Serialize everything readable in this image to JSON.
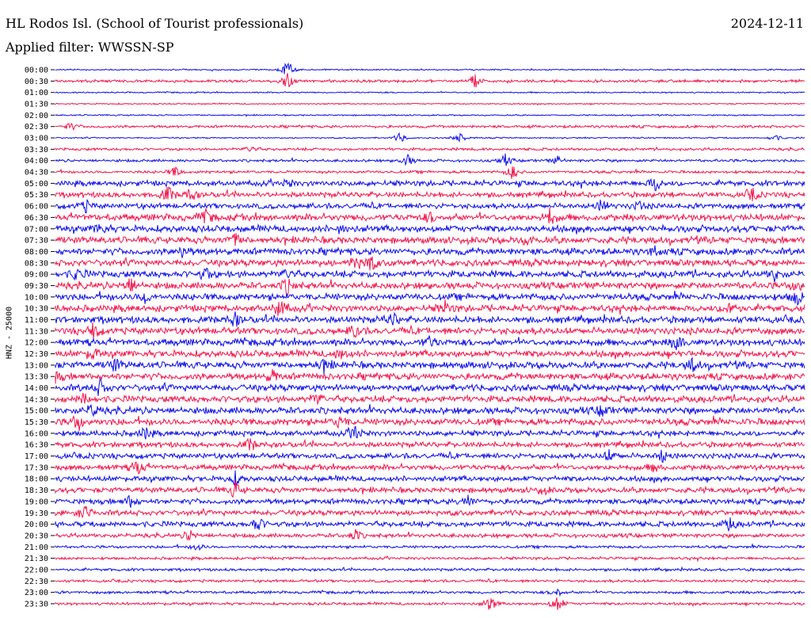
{
  "header": {
    "station": "HL Rodos Isl. (School of Tourist professionals)",
    "date": "2024-12-11",
    "filter": "Applied filter: WWSSN-SP"
  },
  "yaxis_label": "HNZ - 25000",
  "colors": {
    "blue": "#1010e8",
    "red": "#f0184e"
  },
  "chart_data": {
    "type": "line",
    "title": "HL Rodos Isl. (School of Tourist professionals)",
    "subtitle": "Applied filter: WWSSN-SP",
    "ylabel": "HNZ - 25000",
    "tick_labels": [
      "00:00",
      "00:30",
      "01:00",
      "01:30",
      "02:00",
      "02:30",
      "03:00",
      "03:30",
      "04:00",
      "04:30",
      "05:00",
      "05:30",
      "06:00",
      "06:30",
      "07:00",
      "07:30",
      "08:00",
      "08:30",
      "09:00",
      "09:30",
      "10:00",
      "10:30",
      "11:00",
      "11:30",
      "12:00",
      "12:30",
      "13:00",
      "13:30",
      "14:00",
      "14:30",
      "15:00",
      "15:30",
      "16:00",
      "16:30",
      "17:00",
      "17:30",
      "18:00",
      "18:30",
      "19:00",
      "19:30",
      "20:00",
      "20:30",
      "21:00",
      "21:30",
      "22:00",
      "22:30",
      "23:00",
      "23:30"
    ],
    "series_colors": [
      "blue",
      "red"
    ],
    "noise_level": [
      1,
      2,
      1,
      1,
      1,
      2,
      1,
      2,
      2,
      2,
      4,
      4,
      4,
      5,
      5,
      5,
      5,
      5,
      5,
      5,
      5,
      5,
      5,
      5,
      5,
      5,
      5,
      5,
      5,
      5,
      5,
      5,
      4,
      4,
      4,
      4,
      4,
      4,
      4,
      4,
      4,
      3,
      2,
      2,
      2,
      2,
      2,
      2
    ],
    "events": [
      [
        [
          0.31,
          5
        ]
      ],
      [
        [
          0.31,
          4
        ],
        [
          0.56,
          4
        ]
      ],
      [],
      [],
      [],
      [
        [
          0.02,
          2
        ]
      ],
      [
        [
          0.46,
          3
        ],
        [
          0.54,
          3
        ],
        [
          0.96,
          2
        ]
      ],
      [
        [
          0.26,
          2
        ]
      ],
      [
        [
          0.47,
          3
        ],
        [
          0.67,
          2
        ],
        [
          0.6,
          3
        ]
      ],
      [
        [
          0.16,
          3
        ],
        [
          0.61,
          4
        ]
      ],
      [
        [
          0.8,
          4
        ],
        [
          0.31,
          2
        ]
      ],
      [
        [
          0.15,
          4
        ],
        [
          0.18,
          3
        ],
        [
          0.93,
          3
        ]
      ],
      [
        [
          0.04,
          3
        ],
        [
          0.73,
          3
        ],
        [
          0.78,
          2
        ]
      ],
      [
        [
          0.2,
          3
        ],
        [
          0.66,
          4
        ],
        [
          0.5,
          2
        ]
      ],
      [
        [
          0.06,
          3
        ],
        [
          0.38,
          2
        ]
      ],
      [
        [
          0.24,
          3
        ],
        [
          0.63,
          2
        ]
      ],
      [
        [
          0.17,
          3
        ],
        [
          0.8,
          2
        ]
      ],
      [
        [
          0.42,
          4
        ],
        [
          0.4,
          3
        ]
      ],
      [
        [
          0.03,
          3
        ],
        [
          0.2,
          3
        ],
        [
          0.31,
          3
        ],
        [
          0.96,
          3
        ]
      ],
      [
        [
          0.1,
          4
        ],
        [
          0.31,
          4
        ],
        [
          0.99,
          3
        ]
      ],
      [
        [
          0.12,
          3
        ],
        [
          0.99,
          4
        ]
      ],
      [
        [
          0.3,
          5
        ],
        [
          0.52,
          3
        ],
        [
          0.9,
          4
        ]
      ],
      [
        [
          0.24,
          3
        ],
        [
          0.45,
          3
        ]
      ],
      [
        [
          0.05,
          4
        ],
        [
          0.4,
          3
        ]
      ],
      [
        [
          0.5,
          3
        ],
        [
          0.83,
          4
        ]
      ],
      [
        [
          0.05,
          3
        ],
        [
          0.38,
          3
        ]
      ],
      [
        [
          0.08,
          3
        ],
        [
          0.36,
          3
        ],
        [
          0.85,
          3
        ]
      ],
      [
        [
          0.0,
          3
        ],
        [
          0.29,
          3
        ]
      ],
      [
        [
          0.06,
          4
        ]
      ],
      [
        [
          0.04,
          3
        ],
        [
          0.35,
          3
        ]
      ],
      [
        [
          0.05,
          3
        ],
        [
          0.73,
          3
        ]
      ],
      [
        [
          0.03,
          4
        ],
        [
          0.38,
          3
        ]
      ],
      [
        [
          0.12,
          3
        ],
        [
          0.4,
          4
        ]
      ],
      [
        [
          0.26,
          3
        ]
      ],
      [
        [
          0.74,
          3
        ],
        [
          0.81,
          3
        ]
      ],
      [
        [
          0.11,
          4
        ],
        [
          0.8,
          2
        ]
      ],
      [
        [
          0.24,
          3
        ]
      ],
      [
        [
          0.24,
          4
        ],
        [
          0.65,
          2
        ]
      ],
      [
        [
          0.1,
          3
        ],
        [
          0.55,
          3
        ]
      ],
      [
        [
          0.04,
          4
        ]
      ],
      [
        [
          0.27,
          4
        ],
        [
          0.9,
          3
        ]
      ],
      [
        [
          0.18,
          3
        ],
        [
          0.4,
          3
        ]
      ],
      [
        [
          0.19,
          2
        ]
      ],
      [],
      [],
      [],
      [
        [
          0.67,
          2
        ]
      ],
      [
        [
          0.58,
          4
        ],
        [
          0.67,
          5
        ]
      ]
    ],
    "grid": false,
    "legend": "none"
  }
}
